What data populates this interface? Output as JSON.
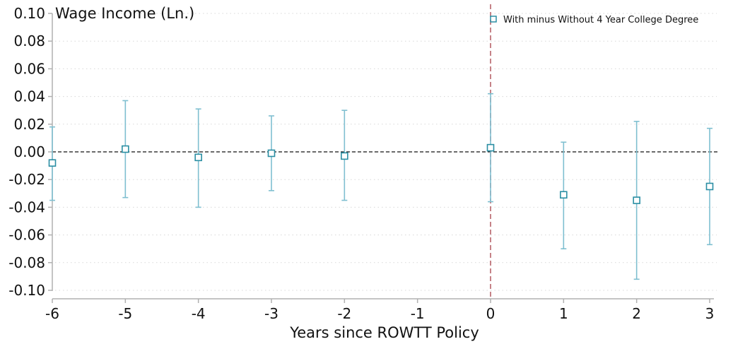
{
  "chart_data": {
    "type": "scatter",
    "title": "",
    "ylabel": "Wage Income (Ln.)",
    "xlabel": "Years since ROWTT Policy",
    "xlim": [
      -6,
      3
    ],
    "ylim": [
      -0.1,
      0.1
    ],
    "x_ticks": [
      -6,
      -5,
      -4,
      -3,
      -2,
      -1,
      0,
      1,
      2,
      3
    ],
    "x_tick_labels": [
      "-6",
      "-5",
      "-4",
      "-3",
      "-2",
      "-1",
      "0",
      "1",
      "2",
      "3"
    ],
    "y_ticks": [
      0.1,
      0.08,
      0.06,
      0.04,
      0.02,
      0.0,
      -0.02,
      -0.04,
      -0.06,
      -0.08,
      -0.1
    ],
    "y_tick_labels": [
      "0.10",
      "0.08",
      "0.06",
      "0.04",
      "0.02",
      "0.00",
      "-0.02",
      "-0.04",
      "-0.06",
      "-0.08",
      "-0.10"
    ],
    "grid": true,
    "grid_style": "dotted horizontal",
    "reference_lines": {
      "y_zero": "black dashed",
      "x_event": 0,
      "x_event_style": "red dashed"
    },
    "legend_position": "top-right",
    "series": [
      {
        "name": "With minus Without 4 Year College Degree",
        "marker": "hollow-square",
        "color": "#2a8ea3",
        "ci_color": "#7fbfd0",
        "x": [
          -6,
          -5,
          -4,
          -3,
          -2,
          0,
          1,
          2,
          3
        ],
        "y": [
          -0.008,
          0.002,
          -0.004,
          -0.001,
          -0.003,
          0.003,
          -0.031,
          -0.035,
          -0.025
        ],
        "ci_low": [
          -0.035,
          -0.033,
          -0.04,
          -0.028,
          -0.035,
          -0.036,
          -0.07,
          -0.092,
          -0.067
        ],
        "ci_high": [
          0.018,
          0.037,
          0.031,
          0.026,
          0.03,
          0.042,
          0.007,
          0.022,
          0.017
        ]
      }
    ],
    "colors": {
      "event_line": "#b8646a",
      "zero_line": "#111111",
      "axis": "#b0b0b0",
      "grid": "#d8d8d8"
    }
  }
}
